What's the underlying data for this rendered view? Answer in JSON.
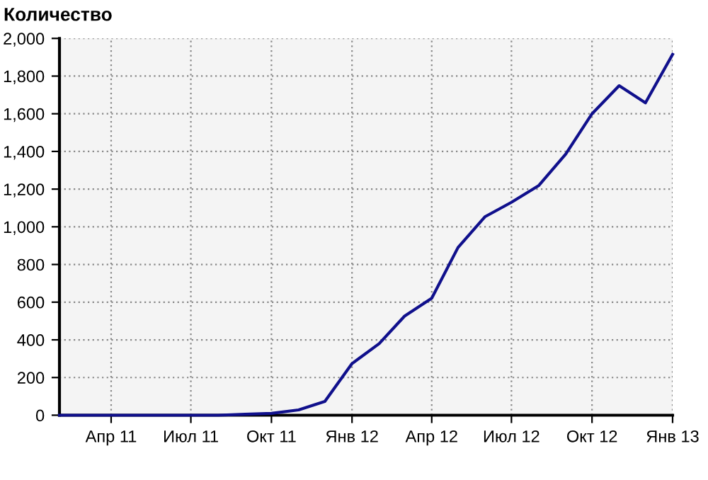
{
  "chart_data": {
    "type": "line",
    "title": "Количество",
    "x": [
      "2011-02",
      "2011-03",
      "2011-04",
      "2011-05",
      "2011-06",
      "2011-07",
      "2011-08",
      "2011-09",
      "2011-10",
      "2011-11",
      "2011-12",
      "2012-01",
      "2012-02",
      "2012-03",
      "2012-04",
      "2012-05",
      "2012-06",
      "2012-07",
      "2012-08",
      "2012-09",
      "2012-10",
      "2012-11",
      "2012-12",
      "2013-01"
    ],
    "series": [
      {
        "color": "#10108c",
        "values": [
          0,
          0,
          0,
          0,
          0,
          0,
          0,
          5,
          10,
          28,
          73,
          274,
          380,
          526,
          621,
          890,
          1054,
          1130,
          1218,
          1386,
          1600,
          1749,
          1658,
          1915
        ]
      }
    ],
    "xlim": [
      "2011-02",
      "2013-01"
    ],
    "xticks": [
      {
        "value": "2011-04",
        "label": "Апр 11"
      },
      {
        "value": "2011-07",
        "label": "Июл 11"
      },
      {
        "value": "2011-10",
        "label": "Окт 11"
      },
      {
        "value": "2012-01",
        "label": "Янв 12"
      },
      {
        "value": "2012-04",
        "label": "Апр 12"
      },
      {
        "value": "2012-07",
        "label": "Июл 12"
      },
      {
        "value": "2012-10",
        "label": "Окт 12"
      },
      {
        "value": "2013-01",
        "label": "Янв 13"
      }
    ],
    "ylim": [
      0,
      2000
    ],
    "yticks": [
      {
        "value": 0,
        "label": "0"
      },
      {
        "value": 200,
        "label": "200"
      },
      {
        "value": 400,
        "label": "400"
      },
      {
        "value": 600,
        "label": "600"
      },
      {
        "value": 800,
        "label": "800"
      },
      {
        "value": 1000,
        "label": "1,000"
      },
      {
        "value": 1200,
        "label": "1,200"
      },
      {
        "value": 1400,
        "label": "1,400"
      },
      {
        "value": 1600,
        "label": "1,600"
      },
      {
        "value": 1800,
        "label": "1,800"
      },
      {
        "value": 2000,
        "label": "2,000"
      }
    ],
    "grid": true,
    "line_style": "solid",
    "marker": "none"
  }
}
